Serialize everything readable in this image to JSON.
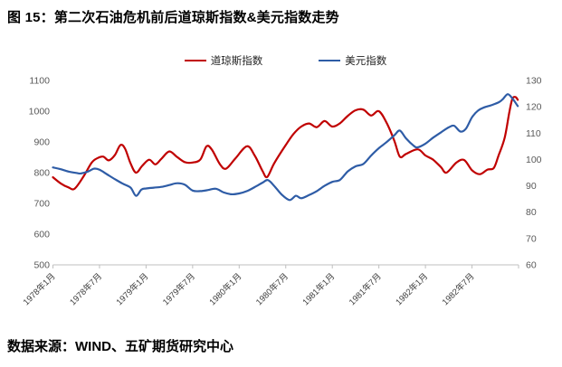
{
  "title": "图 15：第二次石油危机前后道琼斯指数&美元指数走势",
  "source_note": "数据来源：WIND、五矿期货研究中心",
  "colors": {
    "dow_line": "#C00000",
    "usd_line": "#2E5CA6",
    "axis_line": "#BFBFBF",
    "axis_text": "#595959",
    "xlabel_text": "#3d3d3d"
  },
  "chart_data": {
    "type": "line",
    "title": "图 15：第二次石油危机前后道琼斯指数&美元指数走势",
    "xlabel": "",
    "ylabel_left": "",
    "ylabel_right": "",
    "x_tick_labels": [
      "1978年1月",
      "1978年7月",
      "1979年1月",
      "1979年7月",
      "1980年1月",
      "1980年7月",
      "1981年1月",
      "1981年7月",
      "1982年1月",
      "1982年7月"
    ],
    "x_tick_interval_months": 6,
    "x_total_months": 60,
    "y_left_ticks": [
      "1100",
      "1000",
      "900",
      "800",
      "700",
      "600",
      "500"
    ],
    "y_right_ticks": [
      "130",
      "120",
      "110",
      "100",
      "90",
      "80",
      "70",
      "60"
    ],
    "ylim_left": [
      500,
      1100
    ],
    "ylim_right": [
      60,
      130
    ],
    "grid": false,
    "legend_position": "top",
    "series": [
      {
        "name": "道琼斯指数",
        "axis": "left",
        "color": "#C00000",
        "points": [
          [
            0,
            785
          ],
          [
            1,
            765
          ],
          [
            2,
            752
          ],
          [
            2.8,
            748
          ],
          [
            4,
            790
          ],
          [
            5,
            833
          ],
          [
            5.8,
            848
          ],
          [
            6.5,
            852
          ],
          [
            7.2,
            840
          ],
          [
            8,
            858
          ],
          [
            8.7,
            890
          ],
          [
            9.3,
            878
          ],
          [
            10,
            830
          ],
          [
            10.7,
            800
          ],
          [
            11.5,
            822
          ],
          [
            12.4,
            842
          ],
          [
            13.2,
            827
          ],
          [
            14,
            846
          ],
          [
            15,
            869
          ],
          [
            16,
            851
          ],
          [
            17,
            834
          ],
          [
            18,
            833
          ],
          [
            19,
            843
          ],
          [
            19.8,
            886
          ],
          [
            20.5,
            874
          ],
          [
            21.5,
            828
          ],
          [
            22.3,
            813
          ],
          [
            23.5,
            846
          ],
          [
            25,
            886
          ],
          [
            26,
            856
          ],
          [
            27,
            806
          ],
          [
            27.6,
            786
          ],
          [
            28.5,
            830
          ],
          [
            30,
            890
          ],
          [
            31,
            926
          ],
          [
            32,
            950
          ],
          [
            33,
            960
          ],
          [
            34,
            948
          ],
          [
            35,
            968
          ],
          [
            36,
            950
          ],
          [
            37,
            961
          ],
          [
            38,
            985
          ],
          [
            39,
            1003
          ],
          [
            40,
            1005
          ],
          [
            41,
            986
          ],
          [
            42,
            1000
          ],
          [
            43,
            962
          ],
          [
            44,
            903
          ],
          [
            44.7,
            852
          ],
          [
            45.5,
            861
          ],
          [
            47,
            876
          ],
          [
            48,
            856
          ],
          [
            49,
            842
          ],
          [
            50,
            818
          ],
          [
            50.7,
            800
          ],
          [
            52,
            833
          ],
          [
            53,
            841
          ],
          [
            54,
            808
          ],
          [
            55,
            795
          ],
          [
            56,
            810
          ],
          [
            56.8,
            815
          ],
          [
            57.4,
            854
          ],
          [
            58.2,
            913
          ],
          [
            58.8,
            995
          ],
          [
            59.2,
            1040
          ],
          [
            59.6,
            1046
          ],
          [
            59.9,
            1037
          ]
        ]
      },
      {
        "name": "美元指数",
        "axis": "right",
        "color": "#2E5CA6",
        "points": [
          [
            0,
            97.0
          ],
          [
            1,
            96.3
          ],
          [
            2,
            95.4
          ],
          [
            3,
            94.9
          ],
          [
            3.6,
            94.7
          ],
          [
            4.5,
            95.4
          ],
          [
            5.3,
            96.5
          ],
          [
            6,
            96.1
          ],
          [
            7,
            94.3
          ],
          [
            8,
            92.5
          ],
          [
            9,
            90.8
          ],
          [
            10,
            89.3
          ],
          [
            10.7,
            86.2
          ],
          [
            11.4,
            88.6
          ],
          [
            12,
            89.0
          ],
          [
            13,
            89.3
          ],
          [
            14,
            89.6
          ],
          [
            15,
            90.3
          ],
          [
            16,
            91.0
          ],
          [
            17,
            90.4
          ],
          [
            18,
            88.2
          ],
          [
            19,
            88.0
          ],
          [
            20,
            88.4
          ],
          [
            21,
            88.9
          ],
          [
            22,
            87.5
          ],
          [
            23,
            86.8
          ],
          [
            24,
            87.1
          ],
          [
            25,
            88.0
          ],
          [
            26,
            89.5
          ],
          [
            27,
            91.2
          ],
          [
            27.7,
            92.2
          ],
          [
            28.5,
            90.0
          ],
          [
            29.5,
            86.6
          ],
          [
            30.5,
            84.6
          ],
          [
            31.3,
            86.2
          ],
          [
            32,
            85.3
          ],
          [
            33,
            86.5
          ],
          [
            34,
            88.0
          ],
          [
            35,
            90.0
          ],
          [
            36,
            91.5
          ],
          [
            37,
            92.3
          ],
          [
            38,
            95.5
          ],
          [
            39,
            97.4
          ],
          [
            40,
            98.3
          ],
          [
            41,
            101.5
          ],
          [
            42,
            104.3
          ],
          [
            43,
            106.6
          ],
          [
            44,
            109.2
          ],
          [
            44.7,
            111.0
          ],
          [
            45.5,
            108.0
          ],
          [
            46.5,
            105.2
          ],
          [
            47,
            104.6
          ],
          [
            48,
            106.0
          ],
          [
            49,
            108.3
          ],
          [
            50,
            110.3
          ],
          [
            51,
            112.2
          ],
          [
            51.7,
            112.8
          ],
          [
            52.5,
            110.6
          ],
          [
            53.2,
            111.6
          ],
          [
            54,
            116.0
          ],
          [
            54.8,
            118.6
          ],
          [
            55.6,
            119.8
          ],
          [
            56.5,
            120.6
          ],
          [
            57.5,
            121.8
          ],
          [
            58,
            123.0
          ],
          [
            58.6,
            124.8
          ],
          [
            59.2,
            123.2
          ],
          [
            59.9,
            120.3
          ]
        ]
      }
    ]
  }
}
